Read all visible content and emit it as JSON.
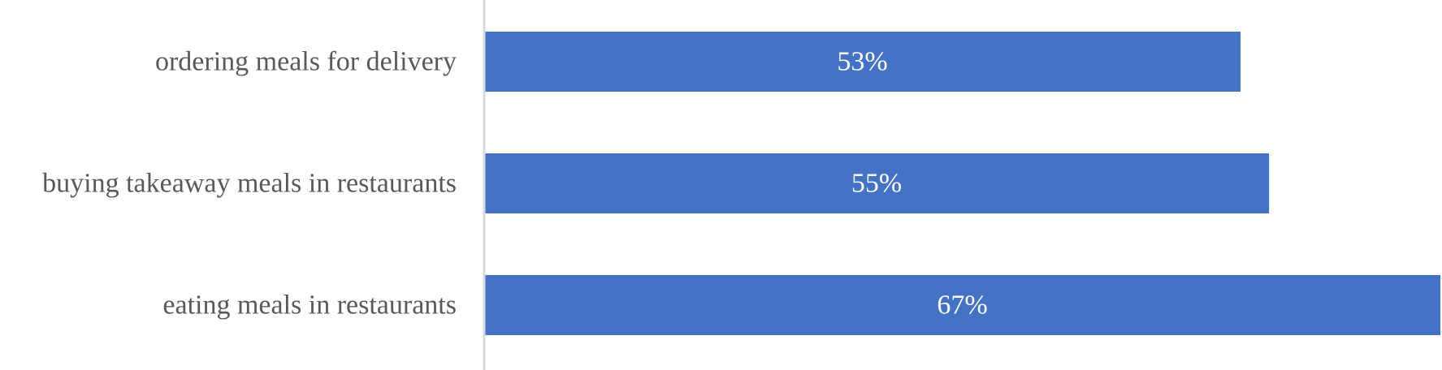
{
  "chart_data": {
    "type": "bar",
    "orientation": "horizontal",
    "title": "",
    "xlabel": "",
    "ylabel": "",
    "categories": [
      "ordering meals for delivery",
      "buying takeaway meals in restaurants",
      "eating meals in restaurants"
    ],
    "values": [
      53,
      55,
      67
    ],
    "data_labels": [
      "53%",
      "55%",
      "67%"
    ],
    "xlim": [
      0,
      67
    ],
    "grid": false,
    "legend": "none",
    "colors": {
      "bar": "#4472C4",
      "axis": "#D9D9D9",
      "category_text": "#595959",
      "data_label_text": "#FFFFFF"
    }
  }
}
